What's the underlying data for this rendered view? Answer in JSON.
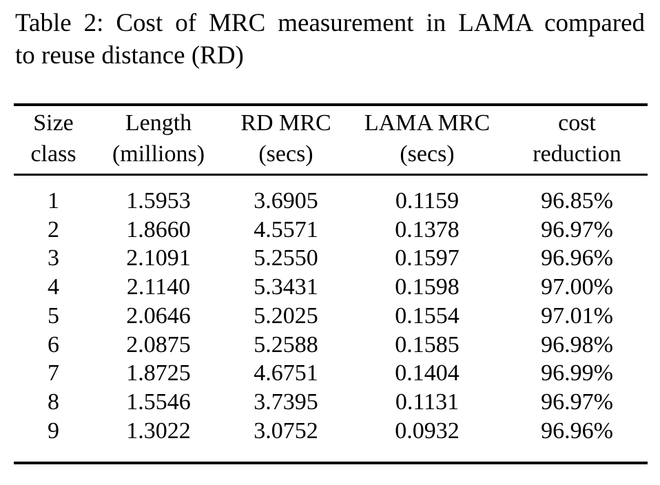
{
  "caption": {
    "lines": [
      "Table 2: Cost of MRC measurement in LAMA compared",
      "to reuse distance (RD)"
    ]
  },
  "table": {
    "columns": [
      {
        "line1": "Size",
        "line2": "class"
      },
      {
        "line1": "Length",
        "line2": "(millions)"
      },
      {
        "line1": "RD MRC",
        "line2": "(secs)"
      },
      {
        "line1": "LAMA MRC",
        "line2": "(secs)"
      },
      {
        "line1": "cost",
        "line2": "reduction"
      }
    ],
    "rows": [
      [
        "1",
        "1.5953",
        "3.6905",
        "0.1159",
        "96.85%"
      ],
      [
        "2",
        "1.8660",
        "4.5571",
        "0.1378",
        "96.97%"
      ],
      [
        "3",
        "2.1091",
        "5.2550",
        "0.1597",
        "96.96%"
      ],
      [
        "4",
        "2.1140",
        "5.3431",
        "0.1598",
        "97.00%"
      ],
      [
        "5",
        "2.0646",
        "5.2025",
        "0.1554",
        "97.01%"
      ],
      [
        "6",
        "2.0875",
        "5.2588",
        "0.1585",
        "96.98%"
      ],
      [
        "7",
        "1.8725",
        "4.6751",
        "0.1404",
        "96.99%"
      ],
      [
        "8",
        "1.5546",
        "3.7395",
        "0.1131",
        "96.97%"
      ],
      [
        "9",
        "1.3022",
        "3.0752",
        "0.0932",
        "96.96%"
      ]
    ]
  },
  "colors": {
    "text": "#000000",
    "background": "#ffffff",
    "rule": "#000000"
  }
}
